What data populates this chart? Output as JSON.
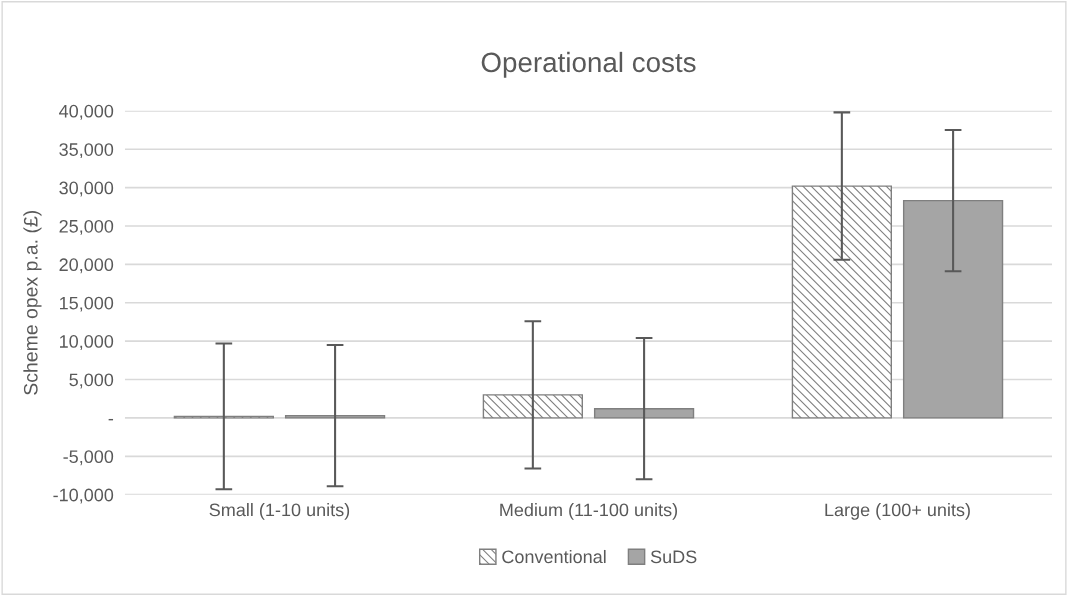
{
  "chart_data": {
    "type": "bar",
    "title": "Operational costs",
    "ylabel": "Scheme opex p.a. (£)",
    "categories": [
      "Small (1-10 units)",
      "Medium (11-100 units)",
      "Large (100+ units)"
    ],
    "series": [
      {
        "name": "Conventional",
        "color": "#7f7f7f",
        "values": [
          200,
          3000,
          30200
        ],
        "errors": [
          9500,
          9600,
          9600
        ]
      },
      {
        "name": "SuDS",
        "color": "#a5a5a5",
        "values": [
          300,
          1200,
          28300
        ],
        "errors": [
          9200,
          9200,
          9200
        ]
      }
    ],
    "ylim": [
      -10000,
      40000
    ],
    "yticks": [
      {
        "value": -10000,
        "label": "-10,000"
      },
      {
        "value": -5000,
        "label": "-5,000"
      },
      {
        "value": 0,
        "label": "-"
      },
      {
        "value": 5000,
        "label": "5,000"
      },
      {
        "value": 10000,
        "label": "10,000"
      },
      {
        "value": 15000,
        "label": "15,000"
      },
      {
        "value": 20000,
        "label": "20,000"
      },
      {
        "value": 25000,
        "label": "25,000"
      },
      {
        "value": 30000,
        "label": "30,000"
      },
      {
        "value": 35000,
        "label": "35,000"
      },
      {
        "value": 40000,
        "label": "40,000"
      }
    ],
    "grid": "y",
    "legend": "bottom"
  }
}
